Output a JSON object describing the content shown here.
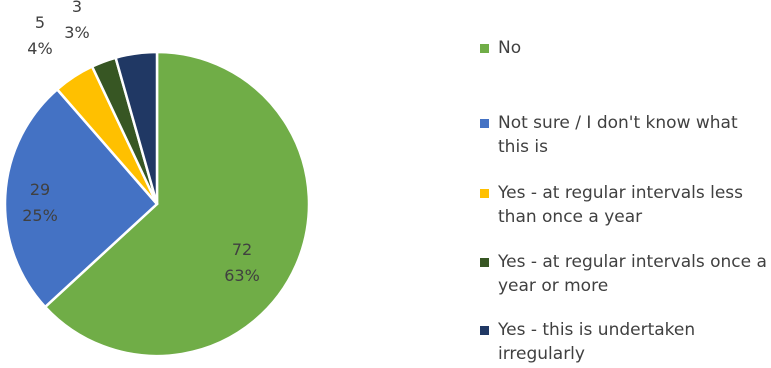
{
  "chart_data": {
    "type": "pie",
    "legend_position": "right",
    "start_angle": "12 o'clock, clockwise",
    "slices": [
      {
        "label": "No",
        "value": 72,
        "percent": "63%",
        "color": "#70AD47"
      },
      {
        "label": "Not sure / I don't know what this is",
        "value": 29,
        "percent": "25%",
        "color": "#4472C4"
      },
      {
        "label": "Yes - at regular intervals less than once a year",
        "value": 5,
        "percent": "4%",
        "color": "#FFC000"
      },
      {
        "label": "Yes - at regular intervals once a year or more",
        "value": 3,
        "percent": "3%",
        "color": "#375623"
      },
      {
        "label": "Yes - this is undertaken irregularly",
        "value": 5,
        "percent": "",
        "color": "#203864"
      }
    ]
  }
}
